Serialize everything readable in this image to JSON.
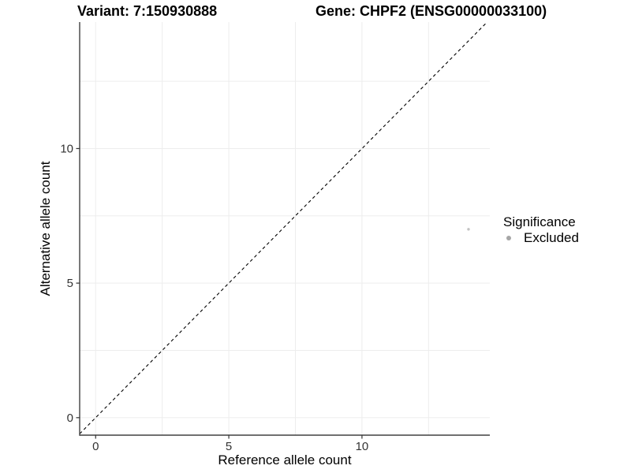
{
  "figure": {
    "title_left": "Variant: 7:150930888",
    "title_right": "Gene: CHPF2 (ENSG00000033100)"
  },
  "legend": {
    "title": "Significance",
    "items": [
      {
        "label": "Excluded",
        "swatch_color": "#a6a6a6"
      }
    ]
  },
  "style": {
    "background": "#ffffff",
    "gridline_color": "#ededed",
    "axis_line_color": "#404040",
    "tick_color": "#333333",
    "tick_label_color": "#333333",
    "reference_line_color": "#000000"
  },
  "chart_data": {
    "type": "scatter",
    "title": "Variant: 7:150930888 — Gene: CHPF2 (ENSG00000033100)",
    "xlabel": "Reference allele count",
    "ylabel": "Alternative allele count",
    "xlim": [
      -0.6,
      14.8
    ],
    "ylim": [
      -0.65,
      14.7
    ],
    "x_major_ticks": [
      0,
      5,
      10
    ],
    "y_major_ticks": [
      0,
      5,
      10
    ],
    "x_minor_gridlines": [
      2.5,
      7.5,
      12.5
    ],
    "y_minor_gridlines": [
      2.5,
      7.5,
      12.5
    ],
    "grid": true,
    "legend_position": "right",
    "legend_title": "Significance",
    "series": [
      {
        "name": "Excluded",
        "points": [
          {
            "x": 14,
            "y": 7
          }
        ],
        "color": "#c2c2c2",
        "marker_radius": 1.7
      }
    ],
    "reference_line": {
      "kind": "identity",
      "style": "dashed",
      "from": [
        -0.6,
        -0.6
      ],
      "to": [
        14.7,
        14.7
      ],
      "color": "#000000"
    }
  }
}
